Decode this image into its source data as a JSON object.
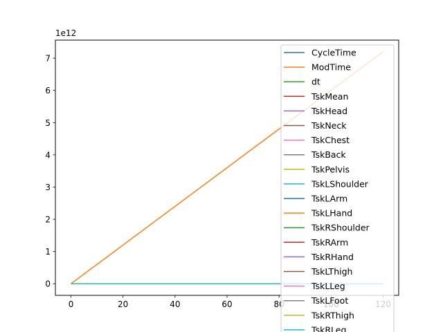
{
  "chart_data": {
    "type": "line",
    "title": "",
    "xlabel": "",
    "ylabel": "",
    "xlim": [
      -6,
      126
    ],
    "ylim": [
      -0.36,
      7.56
    ],
    "y_exponent_label": "1e12",
    "x_ticks": [
      {
        "value": 0,
        "label": "0"
      },
      {
        "value": 20,
        "label": "20"
      },
      {
        "value": 40,
        "label": "40"
      },
      {
        "value": 60,
        "label": "60"
      },
      {
        "value": 80,
        "label": "80"
      },
      {
        "value": 100,
        "label": "100"
      },
      {
        "value": 120,
        "label": "120"
      }
    ],
    "y_ticks": [
      {
        "value": 0,
        "label": "0"
      },
      {
        "value": 1,
        "label": "1"
      },
      {
        "value": 2,
        "label": "2"
      },
      {
        "value": 3,
        "label": "3"
      },
      {
        "value": 4,
        "label": "4"
      },
      {
        "value": 5,
        "label": "5"
      },
      {
        "value": 6,
        "label": "6"
      },
      {
        "value": 7,
        "label": "7"
      }
    ],
    "grid": false,
    "legend_placement": "upper-right",
    "x": [
      0,
      120
    ],
    "series": [
      {
        "name": "CycleTime",
        "color": "#1f77b4",
        "values": [
          0,
          0
        ]
      },
      {
        "name": "ModTime",
        "color": "#ff7f0e",
        "values": [
          0,
          7.2
        ]
      },
      {
        "name": "dt",
        "color": "#2ca02c",
        "values": [
          0,
          0
        ]
      },
      {
        "name": "TskMean",
        "color": "#d62728",
        "values": [
          0,
          0
        ]
      },
      {
        "name": "TskHead",
        "color": "#9467bd",
        "values": [
          0,
          0
        ]
      },
      {
        "name": "TskNeck",
        "color": "#8c564b",
        "values": [
          0,
          0
        ]
      },
      {
        "name": "TskChest",
        "color": "#e377c2",
        "values": [
          0,
          0
        ]
      },
      {
        "name": "TskBack",
        "color": "#7f7f7f",
        "values": [
          0,
          0
        ]
      },
      {
        "name": "TskPelvis",
        "color": "#bcbd22",
        "values": [
          0,
          0
        ]
      },
      {
        "name": "TskLShoulder",
        "color": "#17becf",
        "values": [
          0,
          0
        ]
      },
      {
        "name": "TskLArm",
        "color": "#1f77b4",
        "values": [
          0,
          0
        ]
      },
      {
        "name": "TskLHand",
        "color": "#ff7f0e",
        "values": [
          0,
          0
        ]
      },
      {
        "name": "TskRShoulder",
        "color": "#2ca02c",
        "values": [
          0,
          0
        ]
      },
      {
        "name": "TskRArm",
        "color": "#d62728",
        "values": [
          0,
          0
        ]
      },
      {
        "name": "TskRHand",
        "color": "#9467bd",
        "values": [
          0,
          0
        ]
      },
      {
        "name": "TskLThigh",
        "color": "#8c564b",
        "values": [
          0,
          0
        ]
      },
      {
        "name": "TskLLeg",
        "color": "#e377c2",
        "values": [
          0,
          0
        ]
      },
      {
        "name": "TskLFoot",
        "color": "#7f7f7f",
        "values": [
          0,
          0
        ]
      },
      {
        "name": "TskRThigh",
        "color": "#bcbd22",
        "values": [
          0,
          0
        ]
      },
      {
        "name": "TskRLeg",
        "color": "#17becf",
        "values": [
          0,
          0
        ]
      }
    ]
  }
}
